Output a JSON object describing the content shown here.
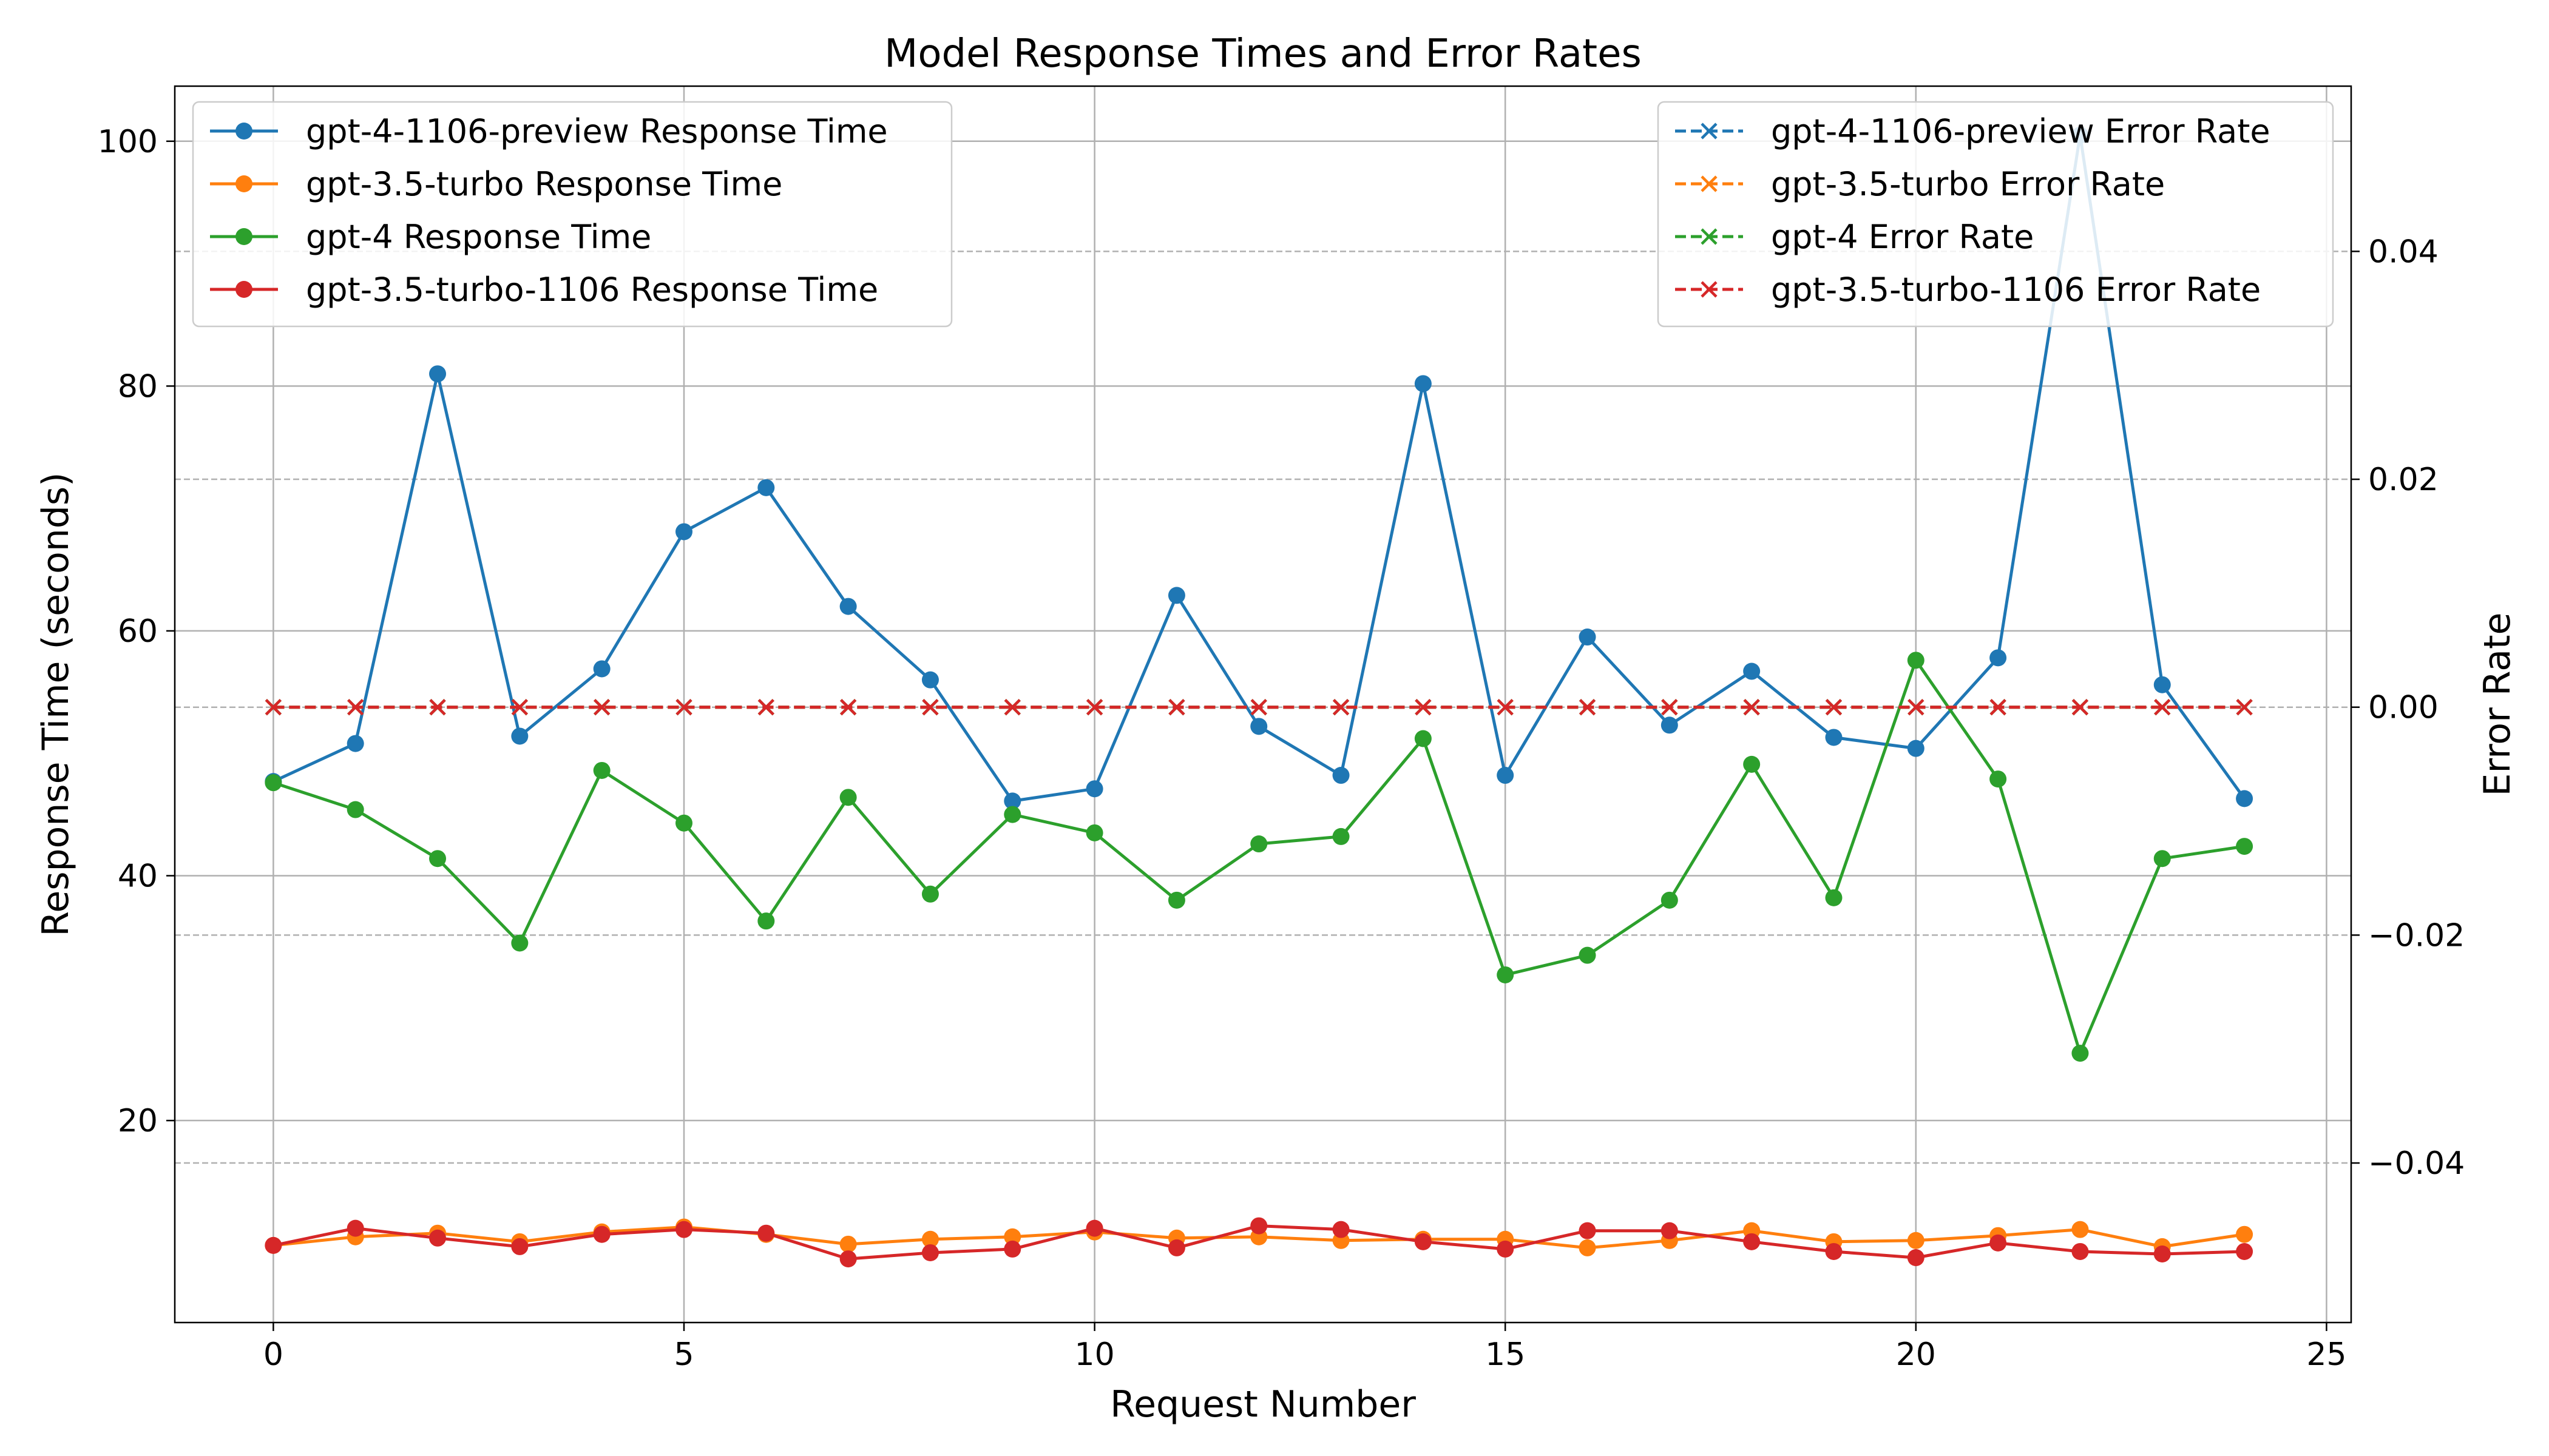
{
  "chart_data": {
    "type": "line",
    "title": "Model Response Times and Error Rates",
    "xlabel": "Request Number",
    "ylabel": "Response Time (seconds)",
    "y2label": "Error Rate",
    "xlim": [
      -1.2,
      25.3
    ],
    "ylim": [
      3.5,
      104.5
    ],
    "y2lim": [
      -0.054,
      0.0545
    ],
    "x_ticks": [
      "0",
      "5",
      "10",
      "15",
      "20",
      "25"
    ],
    "y_ticks": [
      "20",
      "40",
      "60",
      "80",
      "100"
    ],
    "y2_ticks": [
      "−0.04",
      "−0.02",
      "0.00",
      "0.02",
      "0.04"
    ],
    "grid": true,
    "x": [
      0,
      1,
      2,
      3,
      4,
      5,
      6,
      7,
      8,
      9,
      10,
      11,
      12,
      13,
      14,
      15,
      16,
      17,
      18,
      19,
      20,
      21,
      22,
      23,
      24
    ],
    "series": [
      {
        "name": "gpt-4-1106-preview Response Time",
        "color": "#1f77b4",
        "values": [
          47.7,
          50.8,
          81.0,
          51.4,
          56.9,
          68.1,
          71.7,
          62.0,
          56.0,
          46.1,
          47.1,
          62.9,
          52.2,
          48.2,
          80.2,
          48.2,
          59.5,
          52.3,
          56.7,
          51.3,
          50.4,
          57.8,
          100.5,
          55.6,
          46.3
        ]
      },
      {
        "name": "gpt-3.5-turbo Response Time",
        "color": "#ff7f0e",
        "values": [
          9.8,
          10.5,
          10.8,
          10.1,
          10.9,
          11.3,
          10.7,
          9.9,
          10.3,
          10.5,
          10.9,
          10.4,
          10.5,
          10.2,
          10.3,
          10.3,
          9.6,
          10.2,
          11.0,
          10.1,
          10.2,
          10.6,
          11.1,
          9.7,
          10.7
        ]
      },
      {
        "name": "gpt-4 Response Time",
        "color": "#2ca02c",
        "values": [
          47.6,
          45.4,
          41.4,
          34.5,
          48.6,
          44.3,
          36.3,
          46.4,
          38.5,
          45.0,
          43.5,
          38.0,
          42.6,
          43.2,
          51.2,
          31.9,
          33.5,
          38.0,
          49.1,
          38.2,
          57.6,
          47.9,
          25.5,
          41.4,
          42.4
        ]
      },
      {
        "name": "gpt-3.5-turbo-1106 Response Time",
        "color": "#d62728",
        "values": [
          9.8,
          11.2,
          10.4,
          9.7,
          10.7,
          11.1,
          10.8,
          8.7,
          9.2,
          9.5,
          11.2,
          9.6,
          11.4,
          11.1,
          10.1,
          9.5,
          11.0,
          11.0,
          10.1,
          9.3,
          8.8,
          10.0,
          9.3,
          9.1,
          9.3
        ]
      }
    ],
    "error_series": [
      {
        "name": "gpt-4-1106-preview Error Rate",
        "color": "#1f77b4",
        "values": [
          0,
          0,
          0,
          0,
          0,
          0,
          0,
          0,
          0,
          0,
          0,
          0,
          0,
          0,
          0,
          0,
          0,
          0,
          0,
          0,
          0,
          0,
          0,
          0,
          0
        ]
      },
      {
        "name": "gpt-3.5-turbo Error Rate",
        "color": "#ff7f0e",
        "values": [
          0,
          0,
          0,
          0,
          0,
          0,
          0,
          0,
          0,
          0,
          0,
          0,
          0,
          0,
          0,
          0,
          0,
          0,
          0,
          0,
          0,
          0,
          0,
          0,
          0
        ]
      },
      {
        "name": "gpt-4 Error Rate",
        "color": "#2ca02c",
        "values": [
          0,
          0,
          0,
          0,
          0,
          0,
          0,
          0,
          0,
          0,
          0,
          0,
          0,
          0,
          0,
          0,
          0,
          0,
          0,
          0,
          0,
          0,
          0,
          0,
          0
        ]
      },
      {
        "name": "gpt-3.5-turbo-1106 Error Rate",
        "color": "#d62728",
        "values": [
          0,
          0,
          0,
          0,
          0,
          0,
          0,
          0,
          0,
          0,
          0,
          0,
          0,
          0,
          0,
          0,
          0,
          0,
          0,
          0,
          0,
          0,
          0,
          0,
          0
        ]
      }
    ],
    "legend_left_position": "top-left",
    "legend_right_position": "top-right"
  }
}
